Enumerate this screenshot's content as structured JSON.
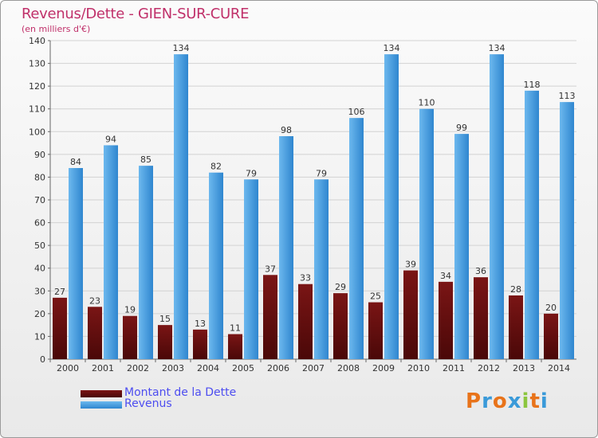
{
  "title": "Revenus/Dette - GIEN-SUR-CURE",
  "subtitle": "(en milliers d'€)",
  "legend": {
    "debt_label": "Montant de la Dette",
    "revenue_label": "Revenus"
  },
  "logo": {
    "letters": [
      "P",
      "r",
      "o",
      "x",
      "i",
      "t",
      "i"
    ],
    "colors": [
      "#e8731a",
      "#3a9ad9",
      "#e8731a",
      "#3a9ad9",
      "#8cc63f",
      "#e8731a",
      "#3a9ad9"
    ]
  },
  "colors": {
    "debt": "#6a1010",
    "revenue": "#3a96dc",
    "title": "#c0306a",
    "legend_text": "#4d4df0"
  },
  "chart_data": {
    "type": "bar",
    "categories": [
      "2000",
      "2001",
      "2002",
      "2003",
      "2004",
      "2005",
      "2006",
      "2007",
      "2008",
      "2009",
      "2010",
      "2011",
      "2012",
      "2013",
      "2014"
    ],
    "series": [
      {
        "name": "Montant de la Dette",
        "values": [
          27,
          23,
          19,
          15,
          13,
          11,
          37,
          33,
          29,
          25,
          39,
          34,
          36,
          28,
          20
        ]
      },
      {
        "name": "Revenus",
        "values": [
          84,
          94,
          85,
          134,
          82,
          79,
          98,
          79,
          106,
          134,
          110,
          99,
          134,
          118,
          113
        ]
      }
    ],
    "yticks": [
      0,
      10,
      20,
      30,
      40,
      50,
      60,
      70,
      80,
      90,
      100,
      110,
      120,
      130,
      140
    ],
    "ylim": [
      0,
      140
    ],
    "grid": true,
    "legend_position": "bottom-left"
  }
}
